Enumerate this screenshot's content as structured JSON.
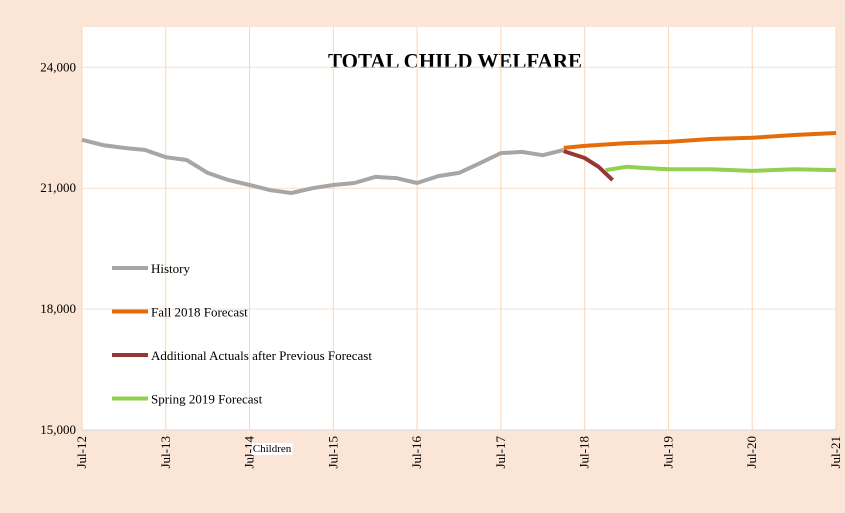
{
  "chart_data": {
    "type": "line",
    "title": "TOTAL CHILD WELFARE",
    "y_label": "Children",
    "xlim": [
      "2012-07",
      "2021-07"
    ],
    "xticks": [
      {
        "value": "2012-07",
        "label": "Jul-12"
      },
      {
        "value": "2013-07",
        "label": "Jul-13"
      },
      {
        "value": "2014-07",
        "label": "Jul-14"
      },
      {
        "value": "2015-07",
        "label": "Jul-15"
      },
      {
        "value": "2016-07",
        "label": "Jul-16"
      },
      {
        "value": "2017-07",
        "label": "Jul-17"
      },
      {
        "value": "2018-07",
        "label": "Jul-18"
      },
      {
        "value": "2019-07",
        "label": "Jul-19"
      },
      {
        "value": "2020-07",
        "label": "Jul-20"
      },
      {
        "value": "2021-07",
        "label": "Jul-21"
      }
    ],
    "ylim": [
      15000,
      25000
    ],
    "yticks": [
      {
        "value": 15000,
        "label": "15,000"
      },
      {
        "value": 18000,
        "label": "18,000"
      },
      {
        "value": 21000,
        "label": "21,000"
      },
      {
        "value": 24000,
        "label": "24,000"
      }
    ],
    "grid": true,
    "legend": "left",
    "series": [
      {
        "name": "History",
        "color": "#a6a6a6",
        "x": [
          "2012-07",
          "2012-10",
          "2013-01",
          "2013-04",
          "2013-07",
          "2013-10",
          "2014-01",
          "2014-04",
          "2014-07",
          "2014-10",
          "2015-01",
          "2015-04",
          "2015-07",
          "2015-10",
          "2016-01",
          "2016-04",
          "2016-07",
          "2016-10",
          "2017-01",
          "2017-04",
          "2017-07",
          "2017-10",
          "2018-01",
          "2018-04"
        ],
        "values": [
          22200,
          22070,
          22000,
          21950,
          21770,
          21700,
          21380,
          21200,
          21080,
          20950,
          20880,
          21000,
          21080,
          21130,
          21280,
          21250,
          21130,
          21300,
          21380,
          21620,
          21870,
          21900,
          21820,
          21950
        ]
      },
      {
        "name": "Fall 2018 Forecast",
        "color": "#e46c0a",
        "x": [
          "2018-04",
          "2018-07",
          "2019-01",
          "2019-07",
          "2020-01",
          "2020-07",
          "2021-01",
          "2021-07"
        ],
        "values": [
          22000,
          22050,
          22120,
          22150,
          22220,
          22250,
          22320,
          22370
        ]
      },
      {
        "name": "Additional Actuals after Previous Forecast",
        "color": "#953735",
        "x": [
          "2018-04",
          "2018-07",
          "2018-09",
          "2018-11"
        ],
        "values": [
          21920,
          21750,
          21530,
          21200
        ]
      },
      {
        "name": "Spring 2019 Forecast",
        "color": "#92d050",
        "x": [
          "2018-10",
          "2019-01",
          "2019-04",
          "2019-07",
          "2020-01",
          "2020-07",
          "2021-01",
          "2021-07"
        ],
        "values": [
          21450,
          21530,
          21500,
          21470,
          21470,
          21430,
          21470,
          21450
        ]
      }
    ]
  }
}
